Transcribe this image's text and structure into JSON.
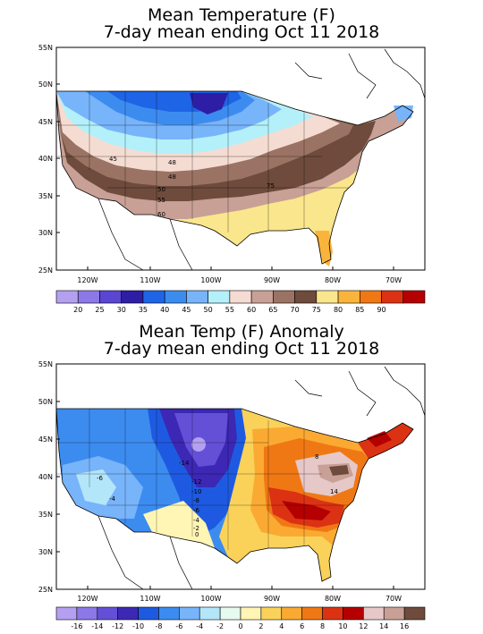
{
  "map1": {
    "title_line1": "Mean Temperature (F)",
    "title_line2": "7-day mean ending Oct 11 2018",
    "lat_labels": [
      "55N",
      "50N",
      "45N",
      "40N",
      "35N",
      "30N",
      "25N"
    ],
    "lon_labels": [
      "120W",
      "110W",
      "100W",
      "90W",
      "80W",
      "70W"
    ],
    "contour_labels": [
      "45",
      "48",
      "48",
      "50",
      "55",
      "60",
      "75"
    ],
    "legend_labels": [
      "20",
      "25",
      "30",
      "35",
      "40",
      "45",
      "50",
      "55",
      "60",
      "65",
      "70",
      "75",
      "80",
      "85",
      "90"
    ],
    "legend_colors": [
      "#b4a0f0",
      "#8c78e6",
      "#5a46d2",
      "#2d1ea5",
      "#1e64e6",
      "#3c8cf0",
      "#78b4fa",
      "#b4f0fa",
      "#f5dcd2",
      "#c8a096",
      "#9b7364",
      "#6e4b3c",
      "#fae68c",
      "#fab43c",
      "#f07814",
      "#dc3214",
      "#b40000"
    ]
  },
  "map2": {
    "title_line1": "Mean Temp (F) Anomaly",
    "title_line2": "7-day mean ending Oct 11 2018",
    "lat_labels": [
      "55N",
      "50N",
      "45N",
      "40N",
      "35N",
      "30N",
      "25N"
    ],
    "lon_labels": [
      "120W",
      "110W",
      "100W",
      "90W",
      "80W",
      "70W"
    ],
    "contour_labels": [
      "-14",
      "-12",
      "-10",
      "-8",
      "-6",
      "-4",
      "-2",
      "0",
      "-6",
      "-4",
      "8",
      "14"
    ],
    "legend_labels": [
      "-16",
      "-14",
      "-12",
      "-10",
      "-8",
      "-6",
      "-4",
      "-2",
      "0",
      "2",
      "4",
      "6",
      "8",
      "10",
      "12",
      "14",
      "16"
    ],
    "legend_colors": [
      "#b4a0f0",
      "#8c78e6",
      "#6450d7",
      "#3c28b4",
      "#1e5ae1",
      "#3c8cf0",
      "#78b4fa",
      "#b4e6fa",
      "#e6faf0",
      "#fff5b4",
      "#fad25a",
      "#faaa32",
      "#f07814",
      "#dc3214",
      "#b40000",
      "#e6c8c8",
      "#c8a096",
      "#6e4b3c"
    ]
  }
}
